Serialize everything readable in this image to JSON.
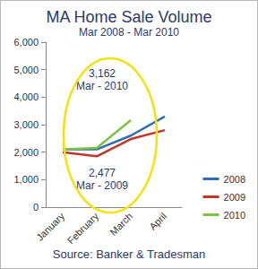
{
  "chart_data": {
    "type": "line",
    "title": "MA Home Sale Volume",
    "subtitle": "Mar 2008 - Mar 2010",
    "source": "Source: Banker & Tradesman",
    "categories": [
      "January",
      "February",
      "March",
      "April"
    ],
    "series": [
      {
        "name": "2008",
        "color": "#2f6db5",
        "values": [
          2100,
          2100,
          2600,
          3300
        ]
      },
      {
        "name": "2009",
        "color": "#c0362c",
        "values": [
          2000,
          1850,
          2477,
          2800
        ]
      },
      {
        "name": "2010",
        "color": "#7dc242",
        "values": [
          2100,
          2150,
          3162,
          null
        ]
      }
    ],
    "annotations": [
      {
        "text": "3,162",
        "note": "Mar - 2010",
        "series": "2010",
        "category": "March"
      },
      {
        "text": "2,477",
        "note": "Mar - 2009",
        "series": "2009",
        "category": "March"
      }
    ],
    "ylim": [
      0,
      6000
    ],
    "yticks": [
      0,
      {
        "value": 1000,
        "label": "1,000"
      },
      {
        "value": 2000,
        "label": "2,000"
      },
      {
        "value": 3000,
        "label": "3,000"
      },
      {
        "value": 4000,
        "label": "4,000"
      },
      {
        "value": 5000,
        "label": "5,000"
      },
      {
        "value": 6000,
        "label": "6,000"
      }
    ],
    "grid": false,
    "legend": "right"
  }
}
